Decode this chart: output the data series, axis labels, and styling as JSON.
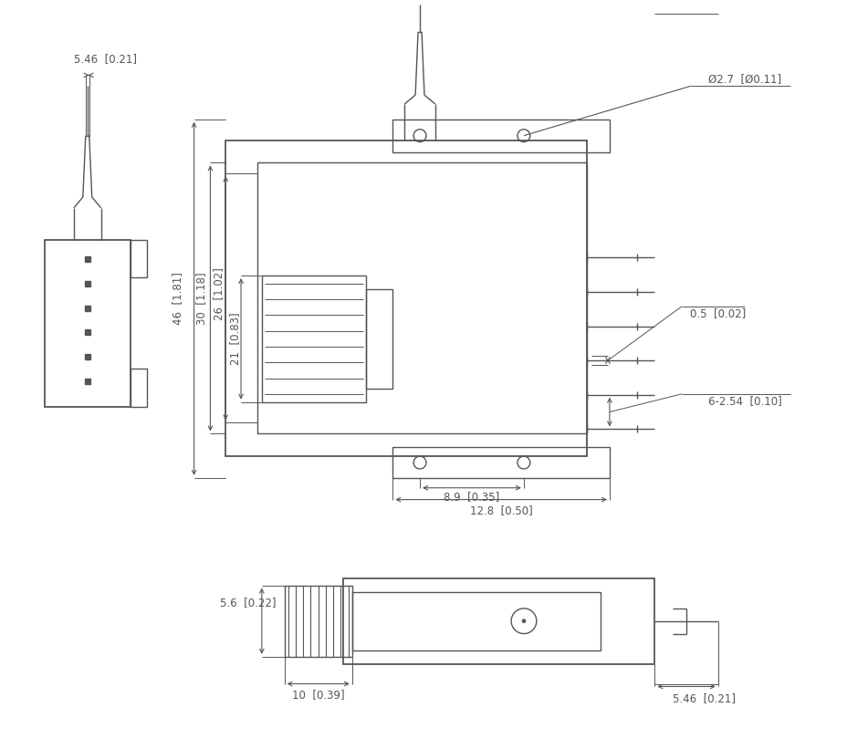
{
  "bg_color": "#ffffff",
  "line_color": "#555555",
  "dim_color": "#555555",
  "text_color": "#333333",
  "lw": 1.0,
  "lw_thick": 1.3,
  "annotations": {
    "top_width": "10  [0.39]",
    "top_right": "5.46  [0.21]",
    "top_height": "5.6  [0.22]",
    "main_width": "12.8  [0.50]",
    "inner_width": "8.9  [0.35]",
    "height_46": "46  [1.81]",
    "height_30": "30  [1.18]",
    "height_26": "26  [1.02]",
    "height_21": "21  [0.83]",
    "pin_spacing": "6-2.54  [0.10]",
    "pin_gap": "0.5  [0.02]",
    "hole_dia": "Ø2.7  [Ø0.11]",
    "bottom_width": "5.46  [0.21]"
  }
}
